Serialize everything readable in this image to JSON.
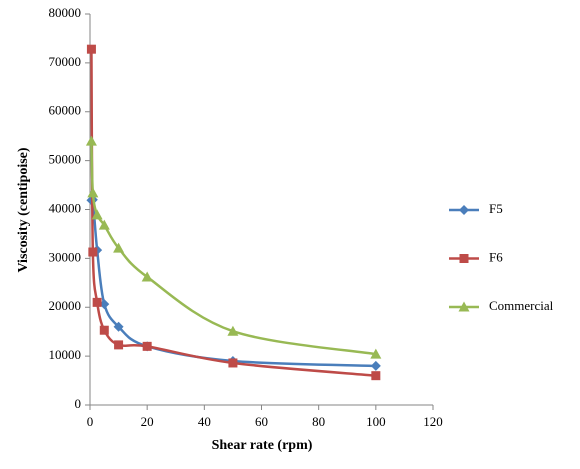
{
  "chart_data": {
    "type": "scatter-smooth",
    "y_label": "Viscosity (centipoise)",
    "x_label": "Shear rate (rpm)",
    "x": [
      0.5,
      1,
      2.5,
      5,
      10,
      20,
      50,
      100
    ],
    "series": [
      {
        "name": "F5",
        "color": "#4a7ebb",
        "marker": "diamond",
        "values": [
          41900,
          42000,
          31700,
          20650,
          16000,
          12000,
          9000,
          8000
        ]
      },
      {
        "name": "F6",
        "color": "#be4b48",
        "marker": "square",
        "values": [
          72800,
          31300,
          21000,
          15300,
          12300,
          12000,
          8600,
          6000
        ]
      },
      {
        "name": "Commercial",
        "color": "#98b954",
        "marker": "triangle",
        "values": [
          54000,
          43400,
          38900,
          36800,
          32100,
          26200,
          15100,
          10400
        ]
      }
    ],
    "xlim": [
      0,
      120
    ],
    "xticks": [
      0,
      20,
      40,
      60,
      80,
      100,
      120
    ],
    "ylim": [
      0,
      80000
    ],
    "yticks": [
      0,
      10000,
      20000,
      30000,
      40000,
      50000,
      60000,
      70000,
      80000
    ],
    "legend": "right",
    "grid": false
  }
}
